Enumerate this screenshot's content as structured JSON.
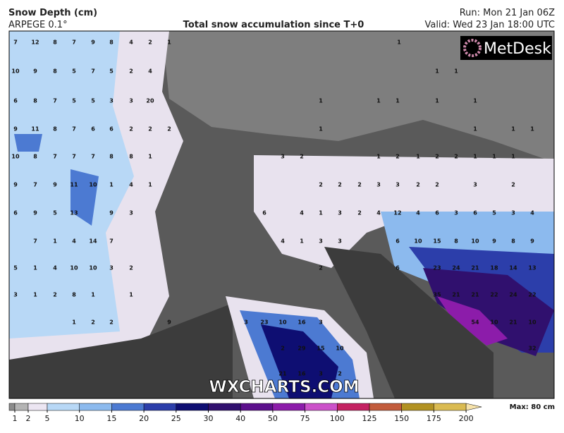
{
  "header": {
    "title": "Snow Depth (cm)",
    "model": "ARPEGE 0.1°",
    "subtitle": "Total snow accumulation since T+0",
    "run": "Run: Mon 21 Jan 06Z",
    "valid": "Valid: Wed 23 Jan 18:00 UTC"
  },
  "logo": "MetDesk",
  "watermark": "WXCHARTS.COM",
  "legend": {
    "ticks": [
      1,
      2,
      5,
      10,
      15,
      20,
      25,
      30,
      40,
      50,
      75,
      100,
      125,
      150,
      175,
      200
    ],
    "colors": [
      "#8c8c8c",
      "#b4b4b4",
      "#ece6f2",
      "#b8d8f6",
      "#8cbaee",
      "#4c7ad2",
      "#2c3eaa",
      "#0e0e72",
      "#30106e",
      "#5c108c",
      "#8c1caa",
      "#cc52ca",
      "#c42262",
      "#c25c3c",
      "#b29222",
      "#dabb52",
      "#f6e2aa"
    ],
    "max_label": "Max: 80 cm"
  },
  "map_labels": [
    7,
    12,
    8,
    7,
    9,
    8,
    4,
    2,
    1,
    1,
    10,
    9,
    8,
    5,
    7,
    5,
    2,
    4,
    1,
    1,
    6,
    8,
    7,
    5,
    5,
    3,
    3,
    20,
    1,
    1,
    1,
    1,
    1,
    9,
    11,
    8,
    7,
    6,
    6,
    2,
    2,
    2,
    1,
    1,
    1,
    1,
    10,
    8,
    7,
    7,
    7,
    8,
    8,
    1,
    3,
    2,
    1,
    2,
    1,
    2,
    2,
    1,
    1,
    1,
    9,
    7,
    9,
    11,
    10,
    1,
    4,
    1,
    2,
    2,
    2,
    3,
    3,
    2,
    2,
    3,
    2,
    6,
    9,
    5,
    13,
    9,
    3,
    6,
    4,
    1,
    3,
    2,
    4,
    12,
    4,
    6,
    3,
    6,
    5,
    3,
    4,
    7,
    1,
    4,
    14,
    7,
    4,
    1,
    3,
    3,
    6,
    10,
    15,
    8,
    10,
    9,
    8,
    9,
    5,
    1,
    4,
    10,
    10,
    3,
    2,
    2,
    6,
    23,
    24,
    21,
    18,
    14,
    13,
    3,
    1,
    2,
    8,
    1,
    1,
    35,
    21,
    21,
    22,
    24,
    22,
    1,
    2,
    2,
    9,
    3,
    23,
    10,
    16,
    3,
    54,
    10,
    21,
    10,
    2,
    29,
    15,
    10,
    32,
    21,
    16,
    3,
    2
  ]
}
